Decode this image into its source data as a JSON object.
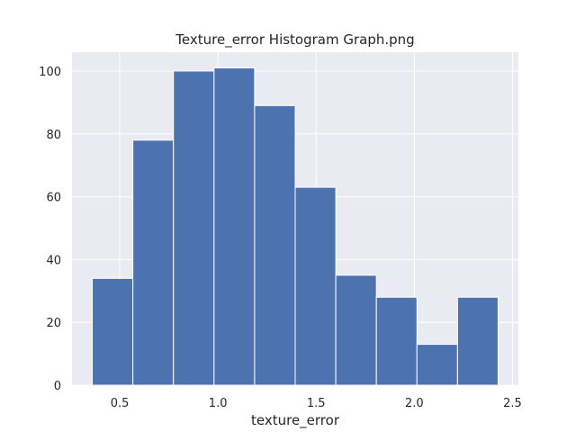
{
  "chart_data": {
    "type": "bar",
    "title": "Texture_error Histogram Graph.png",
    "xlabel": "texture_error",
    "ylabel": "",
    "bin_edges": [
      0.3602,
      0.56685,
      0.7735,
      0.98015,
      1.1868,
      1.39345,
      1.6001,
      1.80675,
      2.0134,
      2.22005,
      2.4267
    ],
    "values": [
      34,
      78,
      100,
      101,
      89,
      63,
      35,
      28,
      13,
      28
    ],
    "xlim": [
      0.2569,
      2.53
    ],
    "ylim": [
      0,
      106
    ],
    "xticks": [
      0.5,
      1.0,
      1.5,
      2.0,
      2.5
    ],
    "xtick_labels": [
      "0.5",
      "1.0",
      "1.5",
      "2.0",
      "2.5"
    ],
    "yticks": [
      0,
      20,
      40,
      60,
      80,
      100
    ],
    "ytick_labels": [
      "0",
      "20",
      "40",
      "60",
      "80",
      "100"
    ],
    "grid": true,
    "bar_color": "#4c72b0",
    "background_color": "#eaeaf2"
  }
}
